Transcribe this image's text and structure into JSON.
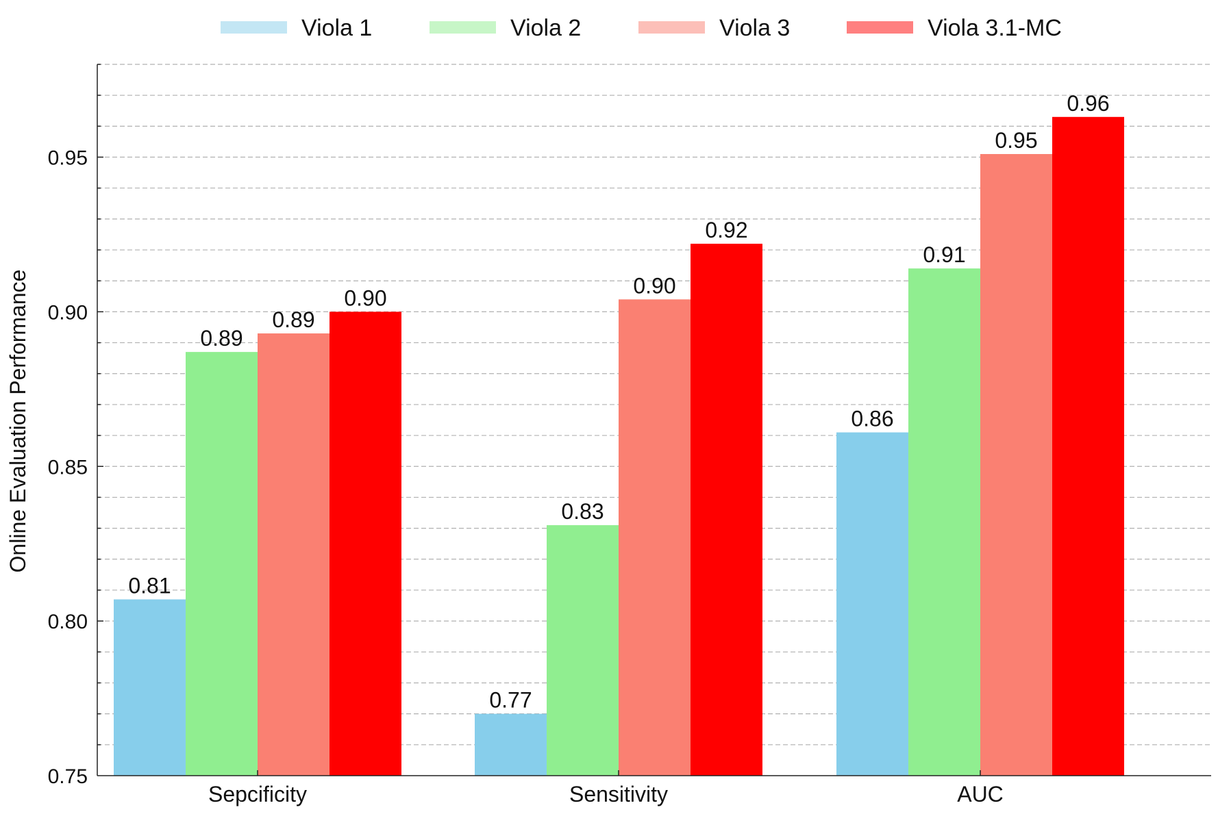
{
  "chart_data": {
    "type": "bar",
    "title": "",
    "xlabel": "",
    "ylabel": "Online Evaluation Performance",
    "ylim": [
      0.75,
      0.98
    ],
    "yticks": [
      0.75,
      0.8,
      0.85,
      0.9,
      0.95
    ],
    "ytick_labels": [
      "0.75",
      "0.80",
      "0.85",
      "0.90",
      "0.95"
    ],
    "minor_tick_step": 0.01,
    "grid": "horizontal dashed",
    "legend_position": "top-center",
    "categories": [
      "Sepcificity",
      "Sensitivity",
      "AUC"
    ],
    "series": [
      {
        "name": "Viola 1",
        "color": "#87CEEB",
        "legend_color": "#C3E6F4",
        "values": [
          0.807,
          0.77,
          0.861
        ],
        "labels": [
          "0.81",
          "0.77",
          "0.86"
        ]
      },
      {
        "name": "Viola 2",
        "color": "#90EE90",
        "legend_color": "#C7F6C7",
        "values": [
          0.887,
          0.831,
          0.914
        ],
        "labels": [
          "0.89",
          "0.83",
          "0.91"
        ]
      },
      {
        "name": "Viola 3",
        "color": "#FA8072",
        "legend_color": "#FCBFB8",
        "values": [
          0.893,
          0.904,
          0.951
        ],
        "labels": [
          "0.89",
          "0.90",
          "0.95"
        ]
      },
      {
        "name": "Viola 3.1-MC",
        "color": "#FF0000",
        "legend_color": "#FF8080",
        "values": [
          0.9,
          0.922,
          0.963
        ],
        "labels": [
          "0.90",
          "0.92",
          "0.96"
        ]
      }
    ]
  }
}
